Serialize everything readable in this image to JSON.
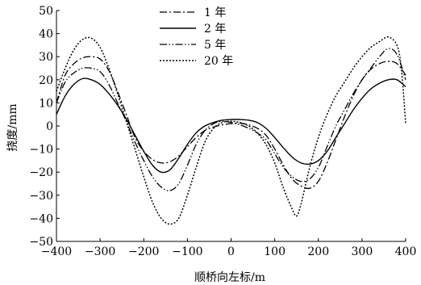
{
  "chart_data": {
    "type": "line",
    "title": "",
    "xlabel": "顺桥向左标/m",
    "ylabel": "挠度/mm",
    "xlim": [
      -400,
      400
    ],
    "ylim": [
      -50,
      50
    ],
    "xticks": [
      -400,
      -300,
      -200,
      -100,
      0,
      100,
      200,
      300,
      400
    ],
    "yticks": [
      -50,
      -40,
      -30,
      -20,
      -10,
      0,
      10,
      20,
      30,
      40,
      50
    ],
    "grid": false,
    "legend_position": "top-center",
    "series": [
      {
        "name": "1 年",
        "style": "dash-dot",
        "x": [
          -400,
          -380,
          -360,
          -340,
          -320,
          -300,
          -280,
          -260,
          -240,
          -220,
          -200,
          -180,
          -160,
          -140,
          -120,
          -100,
          -80,
          -60,
          -40,
          -20,
          0,
          20,
          40,
          60,
          80,
          100,
          120,
          140,
          160,
          180,
          200,
          220,
          240,
          260,
          280,
          300,
          320,
          340,
          360,
          380,
          400
        ],
        "y": [
          10,
          22,
          27,
          29.5,
          30,
          29,
          24,
          15,
          5,
          -5,
          -11,
          -14.5,
          -16,
          -15.5,
          -13,
          -9,
          -5,
          -2,
          -0.5,
          0.5,
          1,
          1.2,
          0.5,
          -1,
          -4,
          -10,
          -17,
          -23,
          -26,
          -27,
          -24,
          -16,
          -6,
          4,
          13,
          20,
          24.5,
          27,
          28,
          27,
          22
        ]
      },
      {
        "name": "2 年",
        "style": "solid",
        "x": [
          -400,
          -380,
          -360,
          -340,
          -320,
          -300,
          -280,
          -260,
          -240,
          -220,
          -200,
          -180,
          -160,
          -140,
          -120,
          -100,
          -80,
          -60,
          -40,
          -20,
          0,
          20,
          40,
          60,
          80,
          100,
          120,
          140,
          160,
          180,
          200,
          220,
          240,
          260,
          280,
          300,
          320,
          340,
          360,
          380,
          400
        ],
        "y": [
          5,
          13,
          18,
          20.5,
          20,
          18,
          14,
          9,
          3,
          -4,
          -11,
          -17,
          -20,
          -19,
          -14,
          -8,
          -3,
          0,
          1.5,
          2.5,
          2.8,
          2.8,
          2.5,
          1.5,
          -1,
          -5,
          -9.5,
          -13.5,
          -16,
          -16.5,
          -15,
          -11,
          -5,
          1,
          7,
          12,
          16,
          18.5,
          20,
          20,
          17
        ]
      },
      {
        "name": "5 年",
        "style": "dash-dot-dot",
        "x": [
          -400,
          -380,
          -360,
          -340,
          -320,
          -300,
          -280,
          -260,
          -240,
          -220,
          -200,
          -180,
          -160,
          -140,
          -120,
          -100,
          -80,
          -60,
          -40,
          -20,
          0,
          20,
          40,
          60,
          80,
          100,
          120,
          140,
          160,
          180,
          200,
          220,
          240,
          260,
          280,
          300,
          320,
          340,
          360,
          380,
          400
        ],
        "y": [
          10,
          19,
          23,
          25,
          25,
          23.5,
          18,
          10,
          2,
          -7,
          -15,
          -22,
          -26.5,
          -28,
          -25,
          -17,
          -8,
          -2,
          1,
          2,
          1.5,
          0.5,
          -1,
          -3,
          -6,
          -12,
          -18,
          -22,
          -24,
          -23,
          -18,
          -9,
          0,
          7,
          14,
          20,
          25,
          30,
          33.5,
          31,
          20
        ]
      },
      {
        "name": "20 年",
        "style": "dotted",
        "x": [
          -400,
          -380,
          -360,
          -340,
          -320,
          -300,
          -280,
          -260,
          -240,
          -220,
          -200,
          -180,
          -160,
          -140,
          -120,
          -100,
          -80,
          -60,
          -40,
          -20,
          0,
          20,
          40,
          60,
          80,
          100,
          120,
          140,
          150,
          160,
          180,
          200,
          220,
          240,
          260,
          280,
          300,
          320,
          340,
          360,
          380,
          390,
          400
        ],
        "y": [
          15,
          25,
          33,
          37.5,
          38,
          34,
          25,
          14,
          2,
          -10,
          -22,
          -33,
          -40,
          -42.5,
          -40,
          -30,
          -18,
          -7,
          -1,
          1.5,
          2,
          1.5,
          0,
          -3,
          -8,
          -16,
          -27,
          -36,
          -39,
          -34,
          -18,
          -5,
          5,
          13,
          19,
          25,
          30,
          34,
          36.5,
          38.5,
          35,
          25,
          1
        ]
      }
    ]
  }
}
